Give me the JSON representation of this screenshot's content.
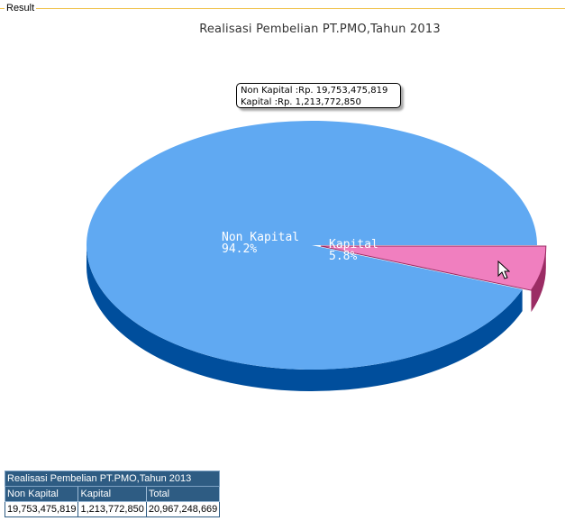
{
  "panel": {
    "legend": "Result"
  },
  "chart_data": {
    "type": "pie",
    "title": "Realisasi Pembelian PT.PMO,Tahun 2013",
    "slices": [
      {
        "name": "Non Kapital",
        "value": 19753475819,
        "percent_label": "94.2%",
        "color": "#60a9f2",
        "side_color": "#004e9c"
      },
      {
        "name": "Kapital",
        "value": 1213772850,
        "percent_label": "5.8%",
        "color": "#f07fbf",
        "side_color": "#9b2c64"
      }
    ],
    "tooltip": {
      "line1": "Non Kapital :Rp. 19,753,475,819",
      "line2": "Kapital :Rp. 1,213,772,850"
    }
  },
  "summary_table": {
    "caption": "Realisasi Pembelian PT.PMO,Tahun 2013",
    "headers": [
      "Non Kapital",
      "Kapital",
      "Total"
    ],
    "values": [
      "19,753,475,819",
      "1,213,772,850",
      "20,967,248,669"
    ]
  }
}
